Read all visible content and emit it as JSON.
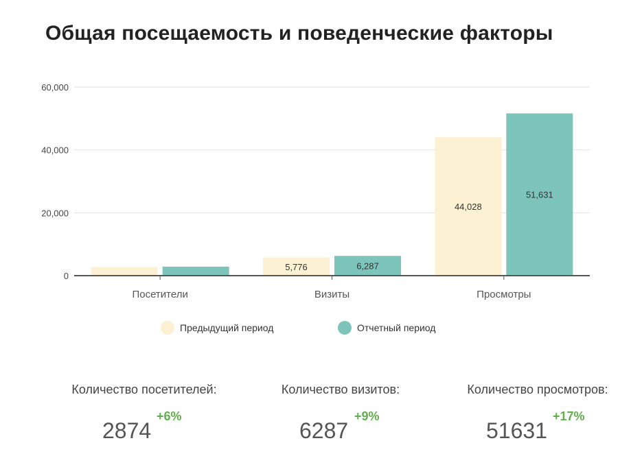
{
  "colors": {
    "previous": "#fdf1d3",
    "current": "#7dc4bb",
    "grid": "#e2e2e2",
    "axis": "#555555",
    "delta_positive": "#5fb04a"
  },
  "chart_data": {
    "type": "bar",
    "title": "Общая посещаемость и поведенческие факторы",
    "categories": [
      "Посетители",
      "Визиты",
      "Просмотры"
    ],
    "series": [
      {
        "name": "Предыдущий период",
        "values": [
          2700,
          5776,
          44028
        ],
        "labels": [
          "",
          "5,776",
          "44,028"
        ]
      },
      {
        "name": "Отчетный период",
        "values": [
          2874,
          6287,
          51631
        ],
        "labels": [
          "",
          "6,287",
          "51,631"
        ]
      }
    ],
    "yticks": [
      "0",
      "20,000",
      "40,000",
      "60,000"
    ],
    "ylim": [
      0,
      60000
    ],
    "grid": true,
    "legend": "bottom-center"
  },
  "stats": [
    {
      "label": "Количество посетителей:",
      "value": "2874",
      "delta": "+6%"
    },
    {
      "label": "Количество визитов:",
      "value": "6287",
      "delta": "+9%"
    },
    {
      "label": "Количество просмотров:",
      "value": "51631",
      "delta": "+17%"
    }
  ]
}
